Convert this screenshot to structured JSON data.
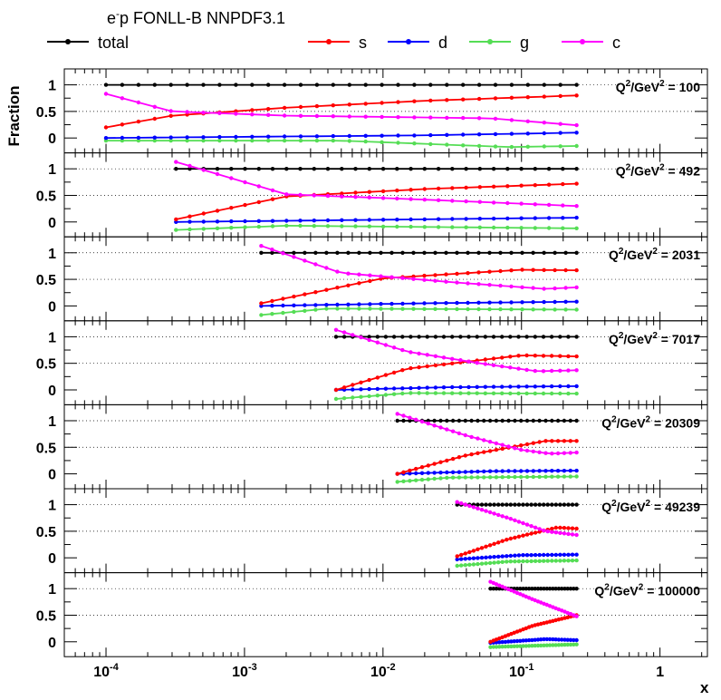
{
  "chart_data": {
    "type": "line",
    "title_main": "e",
    "title_sup": "-",
    "title_rest": "p FONLL-B NNPDF3.1",
    "ylabel": "Fraction",
    "xlabel": "x",
    "x_scale": "log",
    "xlim": [
      5e-05,
      2.2
    ],
    "ylim": [
      -0.28,
      1.3
    ],
    "y_ticks": [
      {
        "value": 1,
        "label": "1"
      },
      {
        "value": 0.5,
        "label": "0.5"
      },
      {
        "value": 0,
        "label": "0"
      }
    ],
    "x_ticks": [
      {
        "value": 0.0001,
        "base": "10",
        "exp": "-4"
      },
      {
        "value": 0.001,
        "base": "10",
        "exp": "-3"
      },
      {
        "value": 0.01,
        "base": "10",
        "exp": "-2"
      },
      {
        "value": 0.1,
        "base": "10",
        "exp": "-1"
      },
      {
        "value": 1,
        "base": "1",
        "exp": ""
      }
    ],
    "grid": "horizontal dotted at 1 and 0.5",
    "legend": [
      {
        "key": "total",
        "label": "total",
        "color": "#000000"
      },
      {
        "key": "s",
        "label": "s",
        "color": "#ff0000"
      },
      {
        "key": "d",
        "label": "d",
        "color": "#0000ff"
      },
      {
        "key": "g",
        "label": "g",
        "color": "#55dd55"
      },
      {
        "key": "c",
        "label": "c",
        "color": "#ff00ff"
      }
    ],
    "x_max": 0.25,
    "n_points": 30,
    "panels": [
      {
        "q2": "100",
        "x_min": 0.0001,
        "s": [
          [
            0.0001,
            0.2
          ],
          [
            0.0003,
            0.42
          ],
          [
            0.002,
            0.57
          ],
          [
            0.02,
            0.7
          ],
          [
            0.25,
            0.8
          ]
        ],
        "d": [
          [
            0.0001,
            0.0
          ],
          [
            0.02,
            0.05
          ],
          [
            0.25,
            0.1
          ]
        ],
        "g": [
          [
            0.0001,
            -0.05
          ],
          [
            0.005,
            -0.05
          ],
          [
            0.08,
            -0.17
          ],
          [
            0.25,
            -0.15
          ]
        ],
        "c": [
          [
            0.0001,
            0.83
          ],
          [
            0.0003,
            0.5
          ],
          [
            0.002,
            0.42
          ],
          [
            0.06,
            0.37
          ],
          [
            0.25,
            0.24
          ]
        ]
      },
      {
        "q2": "492",
        "x_min": 0.00032,
        "s": [
          [
            0.00032,
            0.05
          ],
          [
            0.002,
            0.48
          ],
          [
            0.02,
            0.62
          ],
          [
            0.25,
            0.72
          ]
        ],
        "d": [
          [
            0.00032,
            0.0
          ],
          [
            0.02,
            0.05
          ],
          [
            0.25,
            0.08
          ]
        ],
        "g": [
          [
            0.00032,
            -0.15
          ],
          [
            0.002,
            -0.07
          ],
          [
            0.25,
            -0.12
          ]
        ],
        "c": [
          [
            0.00032,
            1.13
          ],
          [
            0.002,
            0.52
          ],
          [
            0.02,
            0.42
          ],
          [
            0.25,
            0.3
          ]
        ]
      },
      {
        "q2": "2031",
        "x_min": 0.00132,
        "s": [
          [
            0.00132,
            0.05
          ],
          [
            0.01,
            0.52
          ],
          [
            0.1,
            0.68
          ],
          [
            0.25,
            0.67
          ]
        ],
        "d": [
          [
            0.00132,
            0.0
          ],
          [
            0.02,
            0.05
          ],
          [
            0.25,
            0.08
          ]
        ],
        "g": [
          [
            0.00132,
            -0.17
          ],
          [
            0.004,
            -0.05
          ],
          [
            0.25,
            -0.07
          ]
        ],
        "c": [
          [
            0.00132,
            1.13
          ],
          [
            0.005,
            0.62
          ],
          [
            0.03,
            0.45
          ],
          [
            0.15,
            0.32
          ],
          [
            0.25,
            0.35
          ]
        ]
      },
      {
        "q2": "7017",
        "x_min": 0.00458,
        "s": [
          [
            0.00458,
            0.0
          ],
          [
            0.015,
            0.4
          ],
          [
            0.1,
            0.65
          ],
          [
            0.25,
            0.63
          ]
        ],
        "d": [
          [
            0.00458,
            0.0
          ],
          [
            0.03,
            0.05
          ],
          [
            0.25,
            0.07
          ]
        ],
        "g": [
          [
            0.00458,
            -0.17
          ],
          [
            0.015,
            -0.06
          ],
          [
            0.25,
            -0.07
          ]
        ],
        "c": [
          [
            0.00458,
            1.13
          ],
          [
            0.015,
            0.72
          ],
          [
            0.05,
            0.5
          ],
          [
            0.13,
            0.35
          ],
          [
            0.25,
            0.37
          ]
        ]
      },
      {
        "q2": "20309",
        "x_min": 0.0127,
        "s": [
          [
            0.0127,
            0.0
          ],
          [
            0.04,
            0.35
          ],
          [
            0.15,
            0.62
          ],
          [
            0.25,
            0.62
          ]
        ],
        "d": [
          [
            0.0127,
            0.0
          ],
          [
            0.06,
            0.05
          ],
          [
            0.25,
            0.06
          ]
        ],
        "g": [
          [
            0.0127,
            -0.15
          ],
          [
            0.03,
            -0.07
          ],
          [
            0.25,
            -0.05
          ]
        ],
        "c": [
          [
            0.0127,
            1.13
          ],
          [
            0.04,
            0.72
          ],
          [
            0.1,
            0.45
          ],
          [
            0.16,
            0.38
          ],
          [
            0.25,
            0.4
          ]
        ]
      },
      {
        "q2": "49239",
        "x_min": 0.0343,
        "s": [
          [
            0.0343,
            0.03
          ],
          [
            0.08,
            0.35
          ],
          [
            0.18,
            0.57
          ],
          [
            0.25,
            0.55
          ]
        ],
        "d": [
          [
            0.0343,
            -0.03
          ],
          [
            0.1,
            0.05
          ],
          [
            0.25,
            0.06
          ]
        ],
        "g": [
          [
            0.0343,
            -0.15
          ],
          [
            0.08,
            -0.07
          ],
          [
            0.25,
            -0.05
          ]
        ],
        "c": [
          [
            0.0343,
            1.05
          ],
          [
            0.08,
            0.75
          ],
          [
            0.15,
            0.5
          ],
          [
            0.25,
            0.43
          ]
        ]
      },
      {
        "q2": "100000",
        "x_min": 0.0597,
        "s": [
          [
            0.0597,
            0.0
          ],
          [
            0.12,
            0.3
          ],
          [
            0.25,
            0.5
          ]
        ],
        "d": [
          [
            0.0597,
            -0.02
          ],
          [
            0.15,
            0.05
          ],
          [
            0.25,
            0.03
          ]
        ],
        "g": [
          [
            0.0597,
            -0.1
          ],
          [
            0.25,
            -0.05
          ]
        ],
        "c": [
          [
            0.0597,
            1.13
          ],
          [
            0.12,
            0.8
          ],
          [
            0.25,
            0.48
          ]
        ]
      }
    ]
  }
}
